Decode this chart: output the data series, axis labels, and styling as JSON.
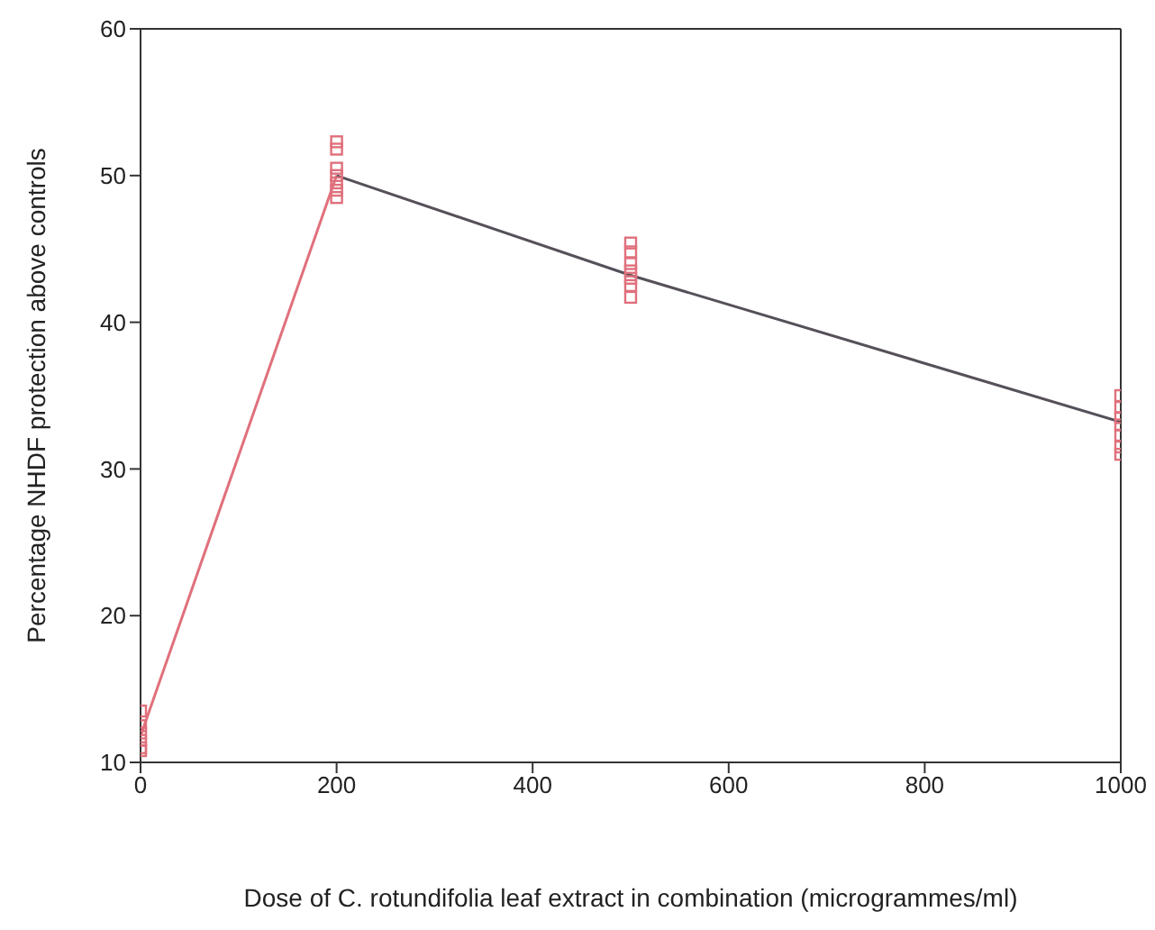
{
  "chart_data": {
    "type": "scatter",
    "xlabel": "Dose of C. rotundifolia leaf extract in combination (microgrammes/ml)",
    "ylabel": "Percentage NHDF protection above controls",
    "xlim": [
      0,
      1000
    ],
    "xticks": [
      0,
      200,
      400,
      600,
      800,
      1000
    ],
    "ylim": [
      10,
      60
    ],
    "yticks": [
      10,
      20,
      30,
      40,
      50,
      60
    ],
    "legend": false,
    "marker": "square",
    "series": [
      {
        "color": "#e0707c",
        "x": [
          0,
          0,
          0,
          0,
          0,
          0,
          200,
          200,
          200,
          200,
          200,
          200,
          200,
          500,
          500,
          500,
          500,
          500,
          500,
          500,
          1000,
          1000,
          1000,
          1000,
          1000,
          1000,
          1000
        ],
        "values": [
          13.5,
          12.5,
          12,
          11.5,
          11,
          10.8,
          52.3,
          51.8,
          50.5,
          50,
          49.5,
          49,
          48.5,
          45.4,
          44.8,
          44,
          43.5,
          43,
          42.5,
          41.7,
          35,
          34.2,
          33.5,
          33,
          32.3,
          31.5,
          31
        ]
      },
      {
        "type": "line",
        "color": "#e0707c",
        "marker": "none",
        "x": [
          0,
          200
        ],
        "values": [
          11.8,
          50
        ]
      },
      {
        "type": "line",
        "color": "#55505a",
        "marker": "none",
        "x": [
          200,
          500,
          1000
        ],
        "values": [
          50,
          43.2,
          33.2
        ]
      }
    ]
  }
}
